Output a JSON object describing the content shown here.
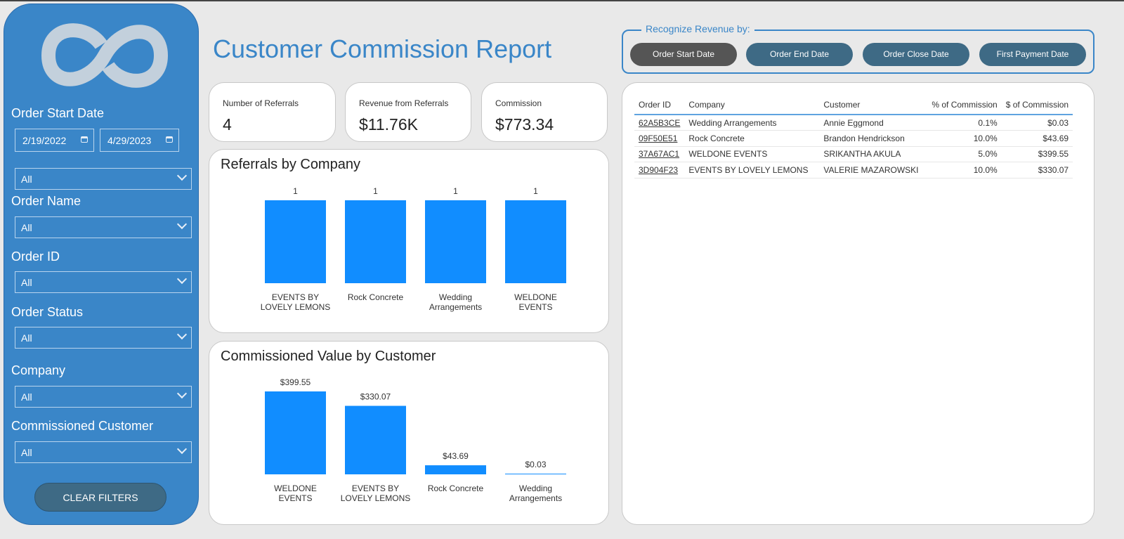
{
  "sidebar": {
    "logo": "infinity-logo",
    "order_start_date_label": "Order Start Date",
    "start_date": "2/19/2022",
    "end_date": "4/29/2023",
    "filters": [
      {
        "label": "",
        "value": "All"
      },
      {
        "label": "Order Name",
        "value": "All"
      },
      {
        "label": "Order ID",
        "value": "All"
      },
      {
        "label": "Order Status",
        "value": "All"
      },
      {
        "label": "Company",
        "value": "All"
      },
      {
        "label": "Commissioned Customer",
        "value": "All"
      }
    ],
    "clear_label": "CLEAR FILTERS"
  },
  "header": {
    "title": "Customer Commission Report"
  },
  "revenue": {
    "legend": "Recognize Revenue by:",
    "buttons": [
      "Order Start Date",
      "Order End Date",
      "Order Close Date",
      "First Payment Date"
    ],
    "active": "Order Start Date"
  },
  "kpis": [
    {
      "label": "Number of Referrals",
      "value": "4"
    },
    {
      "label": "Revenue from Referrals",
      "value": "$11.76K"
    },
    {
      "label": "Commission",
      "value": "$773.34"
    }
  ],
  "colors": {
    "accent": "#3a86c8",
    "bar": "#118dff",
    "button": "#3e6a85",
    "button_active": "#555555"
  },
  "chart_data": [
    {
      "type": "bar",
      "title": "Referrals by Company",
      "categories": [
        "EVENTS BY LOVELY LEMONS",
        "Rock Concrete",
        "Wedding Arrangements",
        "WELDONE EVENTS"
      ],
      "values": [
        1,
        1,
        1,
        1
      ],
      "data_labels": [
        "1",
        "1",
        "1",
        "1"
      ]
    },
    {
      "type": "bar",
      "title": "Commissioned Value by Customer",
      "categories": [
        "WELDONE EVENTS",
        "EVENTS BY LOVELY LEMONS",
        "Rock Concrete",
        "Wedding Arrangements"
      ],
      "values": [
        399.55,
        330.07,
        43.69,
        0.03
      ],
      "data_labels": [
        "$399.55",
        "$330.07",
        "$43.69",
        "$0.03"
      ]
    }
  ],
  "table": {
    "columns": [
      "Order ID",
      "Company",
      "Customer",
      "% of Commission",
      "$ of Commission"
    ],
    "rows": [
      [
        "62A5B3CE",
        "Wedding Arrangements",
        "Annie Eggmond",
        "0.1%",
        "$0.03"
      ],
      [
        "09F50E51",
        "Rock Concrete",
        "Brandon Hendrickson",
        "10.0%",
        "$43.69"
      ],
      [
        "37A67AC1",
        "WELDONE EVENTS",
        "SRIKANTHA AKULA",
        "5.0%",
        "$399.55"
      ],
      [
        "3D904F23",
        "EVENTS BY LOVELY LEMONS",
        "VALERIE MAZAROWSKI",
        "10.0%",
        "$330.07"
      ]
    ]
  }
}
